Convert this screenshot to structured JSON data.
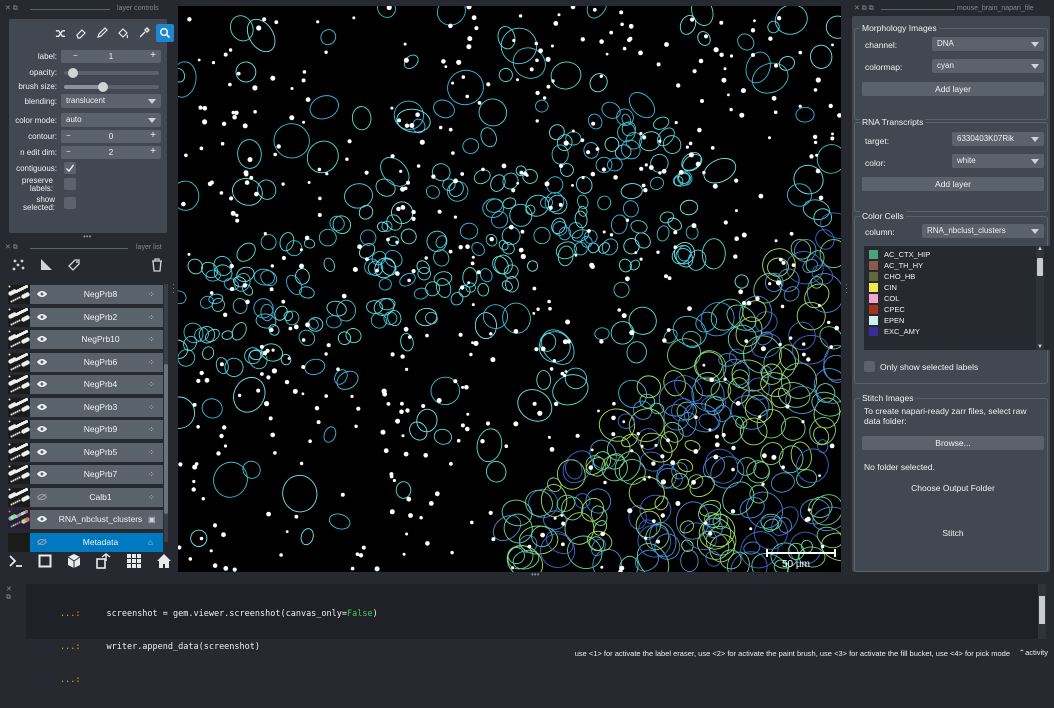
{
  "layer_controls": {
    "dock_title": "layer controls",
    "label_field": {
      "label": "label:",
      "value": "1"
    },
    "opacity_label": "opacity:",
    "opacity": 0.05,
    "brush_size_label": "brush size:",
    "brush_size": 0.4,
    "blending": {
      "label": "blending:",
      "value": "translucent"
    },
    "color_mode": {
      "label": "color mode:",
      "value": "auto"
    },
    "contour": {
      "label": "contour:",
      "value": "0"
    },
    "n_edit_dim": {
      "label": "n edit dim:",
      "value": "2"
    },
    "contiguous_label": "contiguous:",
    "contiguous": true,
    "preserve_labels_label": "preserve labels:",
    "preserve_labels": false,
    "show_selected_label": "show selected:",
    "show_selected": false
  },
  "layer_list": {
    "dock_title": "layer list",
    "layers": [
      {
        "name": "NegPrb8",
        "visible": true
      },
      {
        "name": "NegPrb2",
        "visible": true
      },
      {
        "name": "NegPrb10",
        "visible": true
      },
      {
        "name": "NegPrb6",
        "visible": true
      },
      {
        "name": "NegPrb4",
        "visible": true
      },
      {
        "name": "NegPrb3",
        "visible": true
      },
      {
        "name": "NegPrb9",
        "visible": true
      },
      {
        "name": "NegPrb5",
        "visible": true
      },
      {
        "name": "NegPrb7",
        "visible": true
      },
      {
        "name": "Calb1",
        "visible": false
      },
      {
        "name": "RNA_nbclust_clusters",
        "visible": true
      },
      {
        "name": "Metadata",
        "visible": false,
        "selected": true
      }
    ]
  },
  "plugin": {
    "dock_title": "mouse_brain_napari_file",
    "morphology": {
      "title": "Morphology Images",
      "channel_label": "channel:",
      "channel_value": "DNA",
      "colormap_label": "colormap:",
      "colormap_value": "cyan",
      "add_layer": "Add layer"
    },
    "rna": {
      "title": "RNA Transcripts",
      "target_label": "target:",
      "target_value": "6330403K07Rik",
      "color_label": "color:",
      "color_value": "white",
      "add_layer": "Add layer"
    },
    "color_cells": {
      "title": "Color Cells",
      "column_label": "column:",
      "column_value": "RNA_nbclust_clusters",
      "items": [
        {
          "label": "AC_CTX_HIP",
          "color": "#4aa37a"
        },
        {
          "label": "AC_TH_HY",
          "color": "#8a5b4a"
        },
        {
          "label": "CHO_HB",
          "color": "#5e6b3a"
        },
        {
          "label": "CIN",
          "color": "#f2e94e"
        },
        {
          "label": "COL",
          "color": "#f5a3cf"
        },
        {
          "label": "CPEC",
          "color": "#a2341c"
        },
        {
          "label": "EPEN",
          "color": "#cfeff0"
        },
        {
          "label": "EXC_AMY",
          "color": "#3a2a9c"
        }
      ],
      "only_selected_label": "Only show selected labels"
    },
    "stitch": {
      "title": "Stitch Images",
      "desc": "To create napari-ready zarr files, select raw data folder:",
      "browse": "Browse...",
      "no_folder": "No folder selected.",
      "choose_output": "Choose Output Folder",
      "stitch": "Stitch"
    }
  },
  "canvas": {
    "scale_bar": "50 µm"
  },
  "console": {
    "prompt1": "...:",
    "line1_a": "screenshot = gem.viewer.screenshot(canvas_only=",
    "line1_kw": "False",
    "line1_b": ")",
    "prompt2": "...:",
    "line2": "writer.append_data(screenshot)",
    "prompt3": "...:"
  },
  "status": {
    "help": "use <1> for activate the label eraser, use <2> for activate the paint brush, use <3> for activate the fill bucket, use <4> for pick mode",
    "activity": "activity"
  }
}
